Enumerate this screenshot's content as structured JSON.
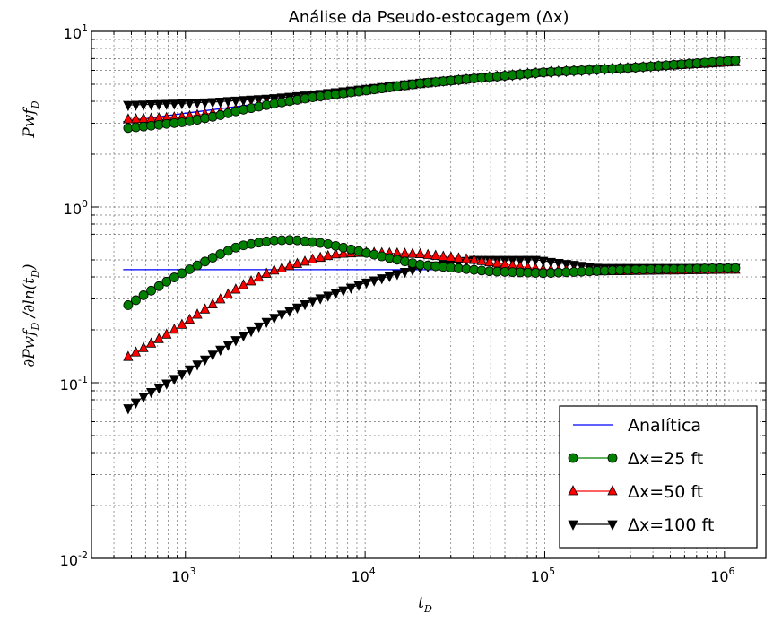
{
  "chart_data": {
    "type": "line",
    "title": "Análise da Pseudo-estocagem (Δx)",
    "xlabel": "t_D",
    "ylabel_upper": "Pwf_D",
    "ylabel_lower": "∂Pwf_D /∂ln(t_D)",
    "xscale": "log",
    "yscale": "log",
    "xlim": [
      300,
      1700000
    ],
    "ylim": [
      0.01,
      10
    ],
    "x_ticks": [
      {
        "value": 1000,
        "base": "10",
        "exp": "3"
      },
      {
        "value": 10000,
        "base": "10",
        "exp": "4"
      },
      {
        "value": 100000,
        "base": "10",
        "exp": "5"
      },
      {
        "value": 1000000,
        "base": "10",
        "exp": "6"
      }
    ],
    "y_ticks": [
      {
        "value": 0.01,
        "base": "10",
        "exp": "-2"
      },
      {
        "value": 0.1,
        "base": "10",
        "exp": "-1"
      },
      {
        "value": 1,
        "base": "10",
        "exp": "0"
      },
      {
        "value": 10,
        "base": "10",
        "exp": "1"
      }
    ],
    "grid": true,
    "legend_position": "bottom-right",
    "series": [
      {
        "name": "Analítica",
        "color": "#0000ff",
        "marker": "none",
        "upper": {
          "x": [
            450,
            1000,
            3000,
            10000,
            30000,
            100000,
            300000,
            1200000
          ],
          "y": [
            3.06,
            3.42,
            3.96,
            4.57,
            5.09,
            5.67,
            6.17,
            6.85
          ]
        },
        "lower": {
          "x": [
            450,
            1200000
          ],
          "y": [
            0.44,
            0.44
          ]
        }
      },
      {
        "name": "Δx=25 ft",
        "color": "#008000",
        "marker": "circle",
        "upper": {
          "x": [
            450,
            600,
            800,
            1000,
            1500,
            2000,
            3000,
            5000,
            10000,
            20000,
            50000,
            100000,
            300000,
            1200000
          ],
          "y": [
            2.8,
            2.88,
            2.98,
            3.05,
            3.3,
            3.55,
            3.85,
            4.2,
            4.6,
            5.05,
            5.5,
            5.85,
            6.2,
            6.85
          ]
        },
        "lower": {
          "x": [
            450,
            600,
            800,
            1000,
            1500,
            2000,
            3000,
            4000,
            6000,
            10000,
            20000,
            50000,
            100000,
            300000,
            1200000
          ],
          "y": [
            0.265,
            0.32,
            0.38,
            0.43,
            0.53,
            0.6,
            0.645,
            0.65,
            0.62,
            0.55,
            0.47,
            0.43,
            0.42,
            0.44,
            0.45
          ]
        }
      },
      {
        "name": "Δx=50 ft",
        "color": "#ff0000",
        "marker": "triangle-up",
        "upper": {
          "x": [
            450,
            600,
            800,
            1000,
            1500,
            2000,
            3000,
            5000,
            10000,
            20000,
            50000,
            100000,
            300000,
            1200000
          ],
          "y": [
            3.15,
            3.18,
            3.22,
            3.27,
            3.45,
            3.62,
            3.9,
            4.2,
            4.6,
            5.0,
            5.5,
            5.85,
            6.2,
            6.7
          ]
        },
        "lower": {
          "x": [
            450,
            600,
            800,
            1000,
            1500,
            2000,
            3000,
            5000,
            7000,
            10000,
            20000,
            40000,
            60000,
            100000,
            200000,
            1200000
          ],
          "y": [
            0.135,
            0.16,
            0.19,
            0.22,
            0.29,
            0.35,
            0.43,
            0.5,
            0.54,
            0.55,
            0.54,
            0.5,
            0.47,
            0.44,
            0.43,
            0.44
          ]
        }
      },
      {
        "name": "Δx=100 ft",
        "color": "#000000",
        "marker": "triangle-down",
        "upper": {
          "x": [
            450,
            700,
            1000,
            1500,
            2000,
            3000,
            5000,
            10000,
            20000,
            50000,
            100000,
            300000,
            1200000
          ],
          "y": [
            3.8,
            3.85,
            3.9,
            3.97,
            4.05,
            4.15,
            4.35,
            4.7,
            5.1,
            5.5,
            5.85,
            6.2,
            6.85
          ]
        },
        "lower": {
          "x": [
            450,
            600,
            800,
            1000,
            1500,
            2000,
            3000,
            5000,
            10000,
            20000,
            40000,
            60000,
            90000,
            120000,
            200000,
            1200000
          ],
          "y": [
            0.068,
            0.085,
            0.1,
            0.115,
            0.15,
            0.18,
            0.23,
            0.29,
            0.37,
            0.45,
            0.5,
            0.5,
            0.5,
            0.48,
            0.45,
            0.45
          ]
        }
      }
    ]
  }
}
